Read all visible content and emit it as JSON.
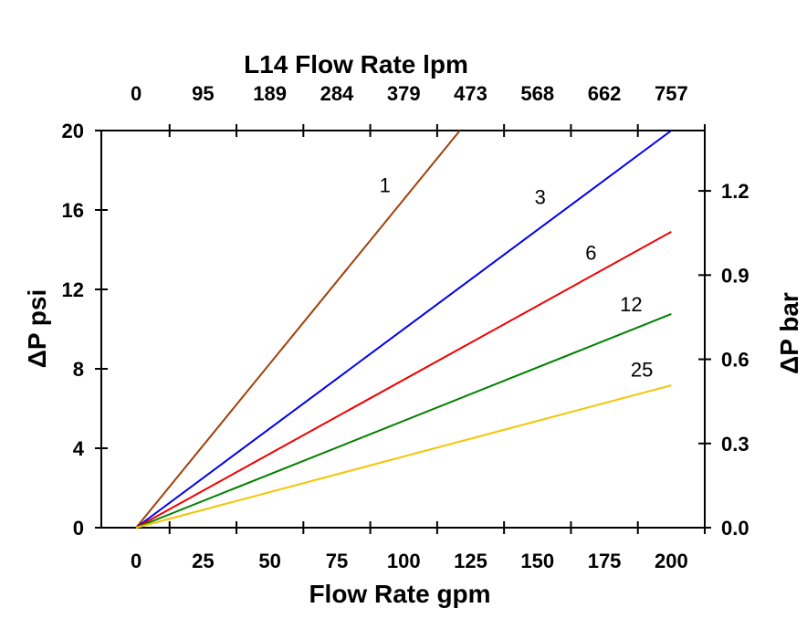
{
  "chart_data": {
    "type": "line",
    "title": "L14 Flow Rate lpm",
    "xlabel": "Flow Rate gpm",
    "ylabel": "ΔP psi",
    "y2label": "ΔP bar",
    "xlim": [
      -13,
      212.5
    ],
    "ylim": [
      0,
      20
    ],
    "y2lim": [
      0,
      1.415
    ],
    "grid": false,
    "x_ticks": [
      "0",
      "25",
      "50",
      "75",
      "100",
      "125",
      "150",
      "175",
      "200"
    ],
    "x_top_ticks": [
      "0",
      "95",
      "189",
      "284",
      "379",
      "473",
      "568",
      "662",
      "757"
    ],
    "y_ticks": [
      "0",
      "4",
      "8",
      "12",
      "16",
      "20"
    ],
    "y2_ticks": [
      "0.0",
      "0.3",
      "0.6",
      "0.9",
      "1.2"
    ],
    "series": [
      {
        "name": "1",
        "color": "#a0400a",
        "x": [
          0,
          121
        ],
        "y": [
          0,
          20
        ],
        "label_at": [
          93,
          16.9
        ]
      },
      {
        "name": "3",
        "color": "#0000ee",
        "x": [
          0,
          200
        ],
        "y": [
          0,
          20
        ],
        "label_at": [
          151,
          16.3
        ]
      },
      {
        "name": "6",
        "color": "#ee0000",
        "x": [
          0,
          200
        ],
        "y": [
          0,
          14.9
        ],
        "label_at": [
          170,
          13.5
        ]
      },
      {
        "name": "12",
        "color": "#008000",
        "x": [
          0,
          200
        ],
        "y": [
          0,
          10.76
        ],
        "label_at": [
          185,
          10.9
        ]
      },
      {
        "name": "25",
        "color": "#f5c400",
        "x": [
          0,
          200
        ],
        "y": [
          0,
          7.17
        ],
        "label_at": [
          189,
          7.6
        ]
      }
    ]
  }
}
